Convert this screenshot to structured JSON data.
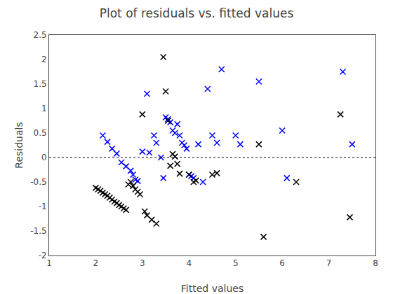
{
  "chart_data": {
    "type": "scatter",
    "title": "Plot of residuals vs. fitted values",
    "xlabel": "Fitted values",
    "ylabel": "Residuals",
    "xlim": [
      1,
      8
    ],
    "ylim": [
      -2,
      2.5
    ],
    "xticks": [
      1,
      2,
      3,
      4,
      5,
      6,
      7,
      8
    ],
    "yticks": [
      -2,
      -1.5,
      -1,
      -0.5,
      0,
      0.5,
      1,
      1.5,
      2,
      2.5
    ],
    "grid": false,
    "series": [
      {
        "color": "#0000FF",
        "marker": "x",
        "x": [
          2.15,
          2.25,
          2.35,
          2.45,
          2.55,
          2.65,
          2.75,
          2.8,
          2.85,
          2.9,
          3.0,
          3.1,
          3.15,
          3.25,
          3.3,
          3.4,
          3.45,
          3.5,
          3.55,
          3.6,
          3.65,
          3.7,
          3.75,
          3.8,
          3.85,
          3.9,
          3.95,
          4.0,
          4.05,
          4.1,
          4.2,
          4.3,
          4.4,
          4.5,
          4.6,
          4.7,
          5.0,
          5.1,
          5.5,
          6.0,
          6.1,
          7.3,
          7.5
        ],
        "values": [
          0.45,
          0.32,
          0.18,
          0.08,
          -0.1,
          -0.18,
          -0.27,
          -0.35,
          -0.45,
          -0.48,
          0.12,
          1.3,
          0.1,
          0.45,
          0.3,
          0.0,
          -0.42,
          0.82,
          0.78,
          0.72,
          0.55,
          0.5,
          0.68,
          0.45,
          0.3,
          0.25,
          0.18,
          -0.35,
          -0.38,
          -0.42,
          0.27,
          -0.5,
          1.4,
          0.45,
          0.3,
          1.8,
          0.45,
          0.27,
          1.55,
          0.55,
          -0.42,
          1.75,
          0.27
        ]
      },
      {
        "color": "#000000",
        "marker": "x",
        "x": [
          2.0,
          2.05,
          2.1,
          2.15,
          2.2,
          2.25,
          2.3,
          2.35,
          2.4,
          2.45,
          2.5,
          2.55,
          2.6,
          2.65,
          2.7,
          2.75,
          2.8,
          2.85,
          2.9,
          2.95,
          3.0,
          3.05,
          3.1,
          3.2,
          3.3,
          3.45,
          3.5,
          3.55,
          3.6,
          3.65,
          3.7,
          3.75,
          3.8,
          4.0,
          4.1,
          4.15,
          4.5,
          4.6,
          5.5,
          5.6,
          6.3,
          7.25,
          7.45
        ],
        "values": [
          -0.62,
          -0.65,
          -0.68,
          -0.72,
          -0.75,
          -0.78,
          -0.82,
          -0.86,
          -0.9,
          -0.93,
          -0.97,
          -1.0,
          -1.04,
          -1.07,
          -0.55,
          -0.5,
          -0.58,
          -0.65,
          -0.7,
          -0.75,
          0.88,
          -1.1,
          -1.18,
          -1.27,
          -1.35,
          2.05,
          1.35,
          0.75,
          -0.17,
          0.07,
          0.02,
          -0.13,
          -0.33,
          -0.35,
          -0.5,
          -0.47,
          -0.35,
          -0.32,
          0.27,
          -1.62,
          -0.5,
          0.88,
          -1.22
        ]
      }
    ],
    "reference_line": {
      "y": 0,
      "line_style": "dotted",
      "color": "#000000"
    }
  }
}
